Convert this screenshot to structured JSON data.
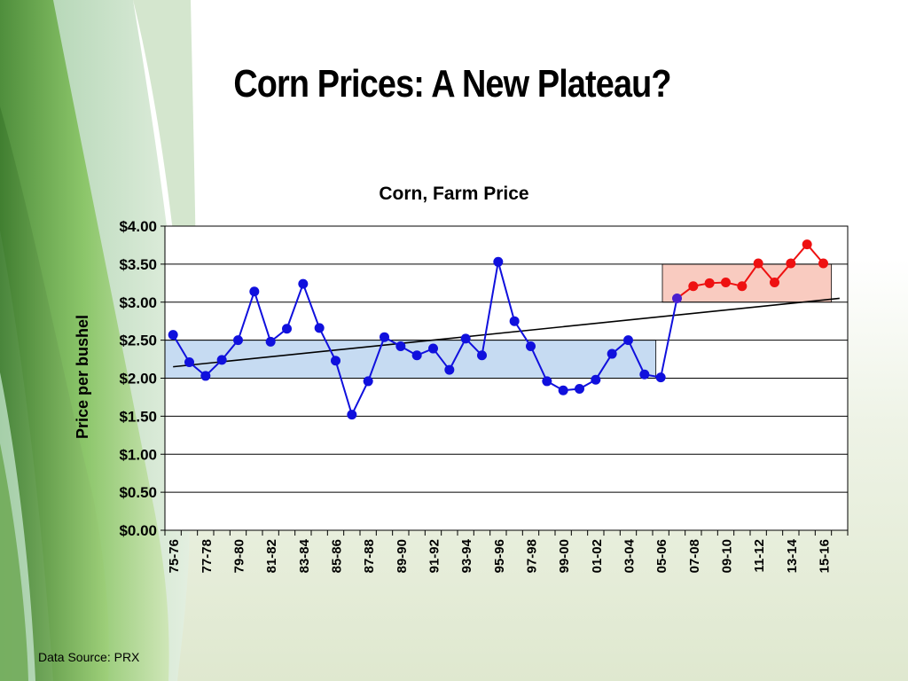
{
  "slide": {
    "title": "Corn Prices: A New Plateau?",
    "data_source": "Data Source: PRX"
  },
  "colors": {
    "series": "#1010dd",
    "series_recent": "#ee1111",
    "band_low": "#c6dbf2",
    "band_high": "#f9cbc0",
    "trend": "#000000"
  },
  "chart_data": {
    "type": "line",
    "title": "Corn, Farm Price",
    "ylabel": "Price per bushel",
    "xlabel": "",
    "ylim": [
      0,
      4
    ],
    "y_ticks": [
      "$0.00",
      "$0.50",
      "$1.00",
      "$1.50",
      "$2.00",
      "$2.50",
      "$3.00",
      "$3.50",
      "$4.00"
    ],
    "grid": true,
    "x_tick_labels": [
      "75-76",
      "77-78",
      "79-80",
      "81-82",
      "83-84",
      "85-86",
      "87-88",
      "89-90",
      "91-92",
      "93-94",
      "95-96",
      "97-98",
      "99-00",
      "01-02",
      "03-04",
      "05-06",
      "07-08",
      "09-10",
      "11-12",
      "13-14",
      "15-16"
    ],
    "series": [
      {
        "values": [
          2.57,
          2.21,
          2.03,
          2.24,
          2.5,
          3.14,
          2.48,
          2.65,
          3.24,
          2.66,
          2.23,
          1.52,
          1.96,
          2.54,
          2.42,
          2.3,
          2.39,
          2.11,
          2.52,
          2.3,
          3.53,
          2.75,
          2.42,
          1.96,
          1.84,
          1.86,
          1.98,
          2.32,
          2.5,
          2.05,
          2.01,
          3.05
        ]
      },
      {
        "values": [
          3.05,
          3.21,
          3.25,
          3.26,
          3.21,
          3.51,
          3.26,
          3.51,
          3.76,
          3.51
        ]
      }
    ],
    "trend_line": [
      2.15,
      3.05
    ],
    "bands": [
      {
        "from_index": 0,
        "to_index": 30.2,
        "y0": 2.0,
        "y1": 2.5
      },
      {
        "from_index": 30.6,
        "to_index": 41,
        "y0": 3.0,
        "y1": 3.5
      }
    ]
  }
}
